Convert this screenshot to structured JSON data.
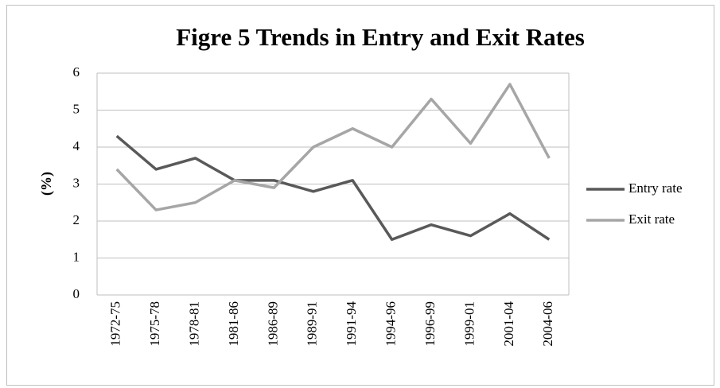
{
  "chart_data": {
    "type": "line",
    "title": "Figre 5  Trends in Entry and Exit Rates",
    "ylabel": "(%)",
    "categories": [
      "1972-75",
      "1975-78",
      "1978-81",
      "1981-86",
      "1986-89",
      "1989-91",
      "1991-94",
      "1994-96",
      "1996-99",
      "1999-01",
      "2001-04",
      "2004-06"
    ],
    "series": [
      {
        "name": "Entry rate",
        "color": "#595959",
        "values": [
          4.3,
          3.4,
          3.7,
          3.1,
          3.1,
          2.8,
          3.1,
          1.5,
          1.9,
          1.6,
          2.2,
          1.5
        ]
      },
      {
        "name": "Exit rate",
        "color": "#a6a6a6",
        "values": [
          3.4,
          2.3,
          2.5,
          3.1,
          2.9,
          4.0,
          4.5,
          4.0,
          5.3,
          4.1,
          5.7,
          3.7
        ]
      }
    ],
    "ylim": [
      0,
      6
    ],
    "yticks": [
      0,
      1,
      2,
      3,
      4,
      5,
      6
    ],
    "grid": true,
    "legend": "right"
  }
}
